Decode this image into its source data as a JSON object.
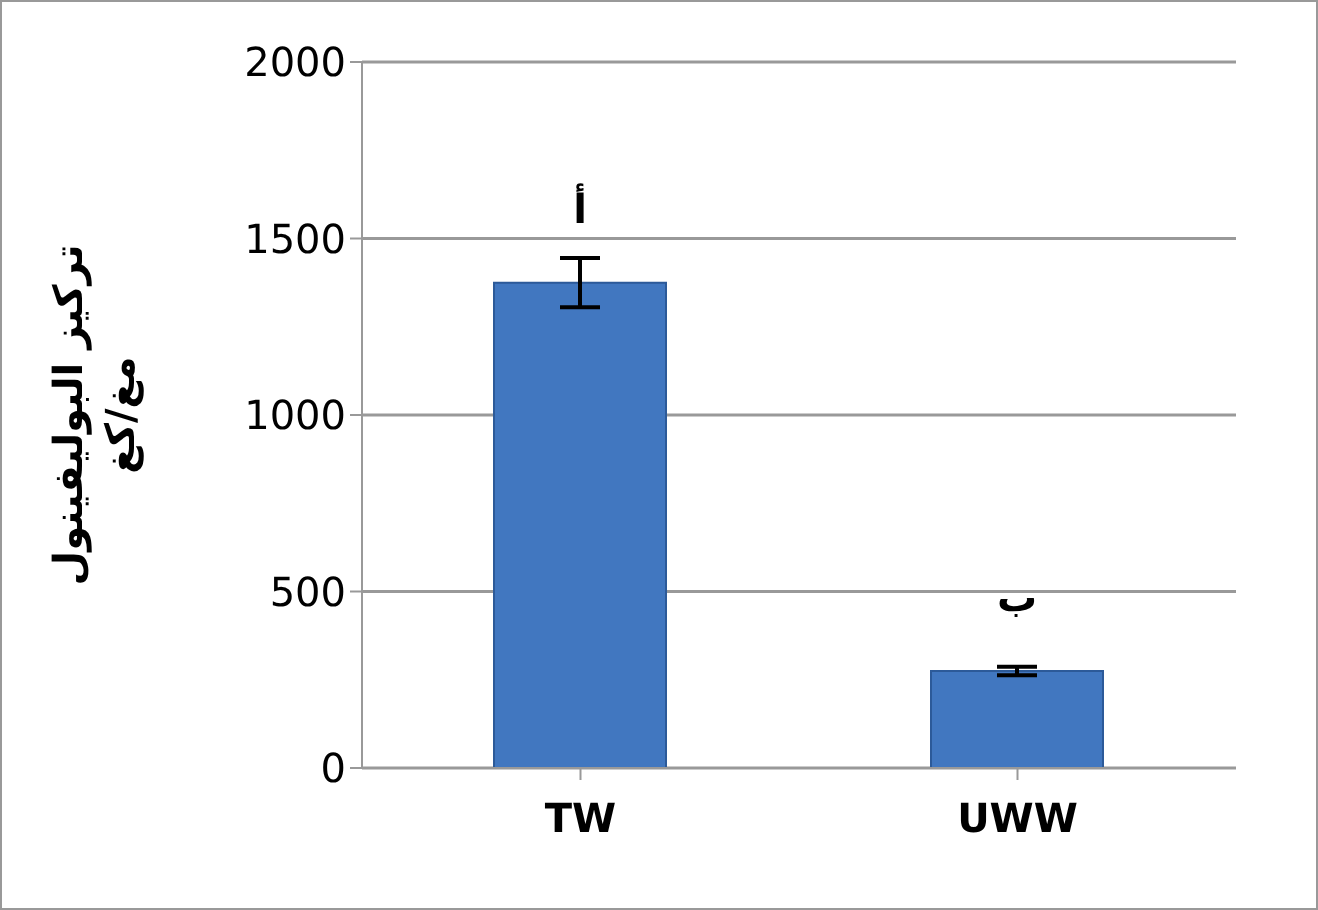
{
  "chart_data": {
    "type": "bar",
    "ylabel": "تركيز البوليفينول\nمغ/كغ",
    "categories": [
      "TW",
      "UWW"
    ],
    "values": [
      1375,
      275
    ],
    "errors": [
      70,
      12
    ],
    "color": "#4177c0",
    "ylim": [
      0,
      2000
    ],
    "yticks": [
      0,
      500,
      1000,
      1500,
      2000
    ],
    "grid": "y",
    "annotations": [
      "أ",
      "ب"
    ]
  }
}
